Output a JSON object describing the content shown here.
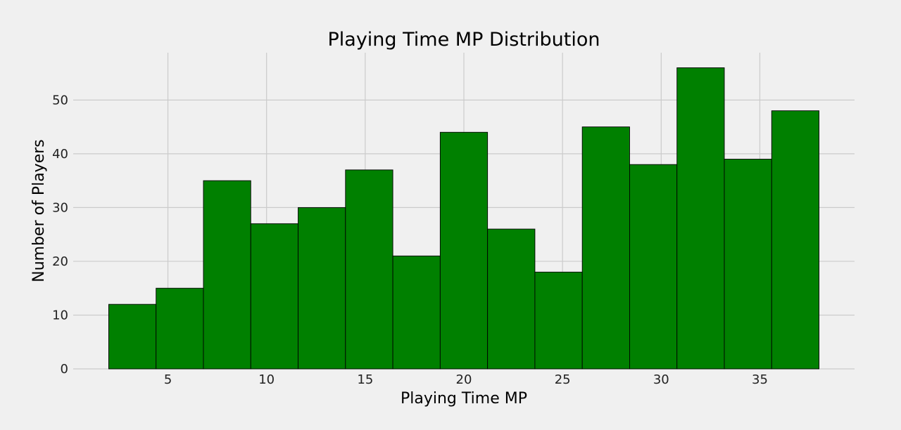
{
  "chart_data": {
    "type": "bar",
    "title": "Playing Time MP Distribution",
    "xlabel": "Playing Time MP",
    "ylabel": "Number of Players",
    "bin_edges": [
      2.0,
      4.4,
      6.8,
      9.2,
      11.6,
      14.0,
      16.4,
      18.8,
      21.2,
      23.6,
      26.0,
      28.4,
      30.8,
      33.2,
      35.6,
      38.0
    ],
    "values": [
      12,
      15,
      35,
      27,
      30,
      37,
      21,
      44,
      26,
      18,
      45,
      38,
      56,
      39,
      48
    ],
    "xticks": [
      5,
      10,
      15,
      20,
      25,
      30,
      35
    ],
    "yticks": [
      0,
      10,
      20,
      30,
      40,
      50
    ],
    "xlim": [
      0.2,
      39.8
    ],
    "ylim": [
      0,
      58.8
    ],
    "grid": true,
    "bar_color": "#008000",
    "edge_color": "#000000",
    "background": "#f0f0f0"
  }
}
